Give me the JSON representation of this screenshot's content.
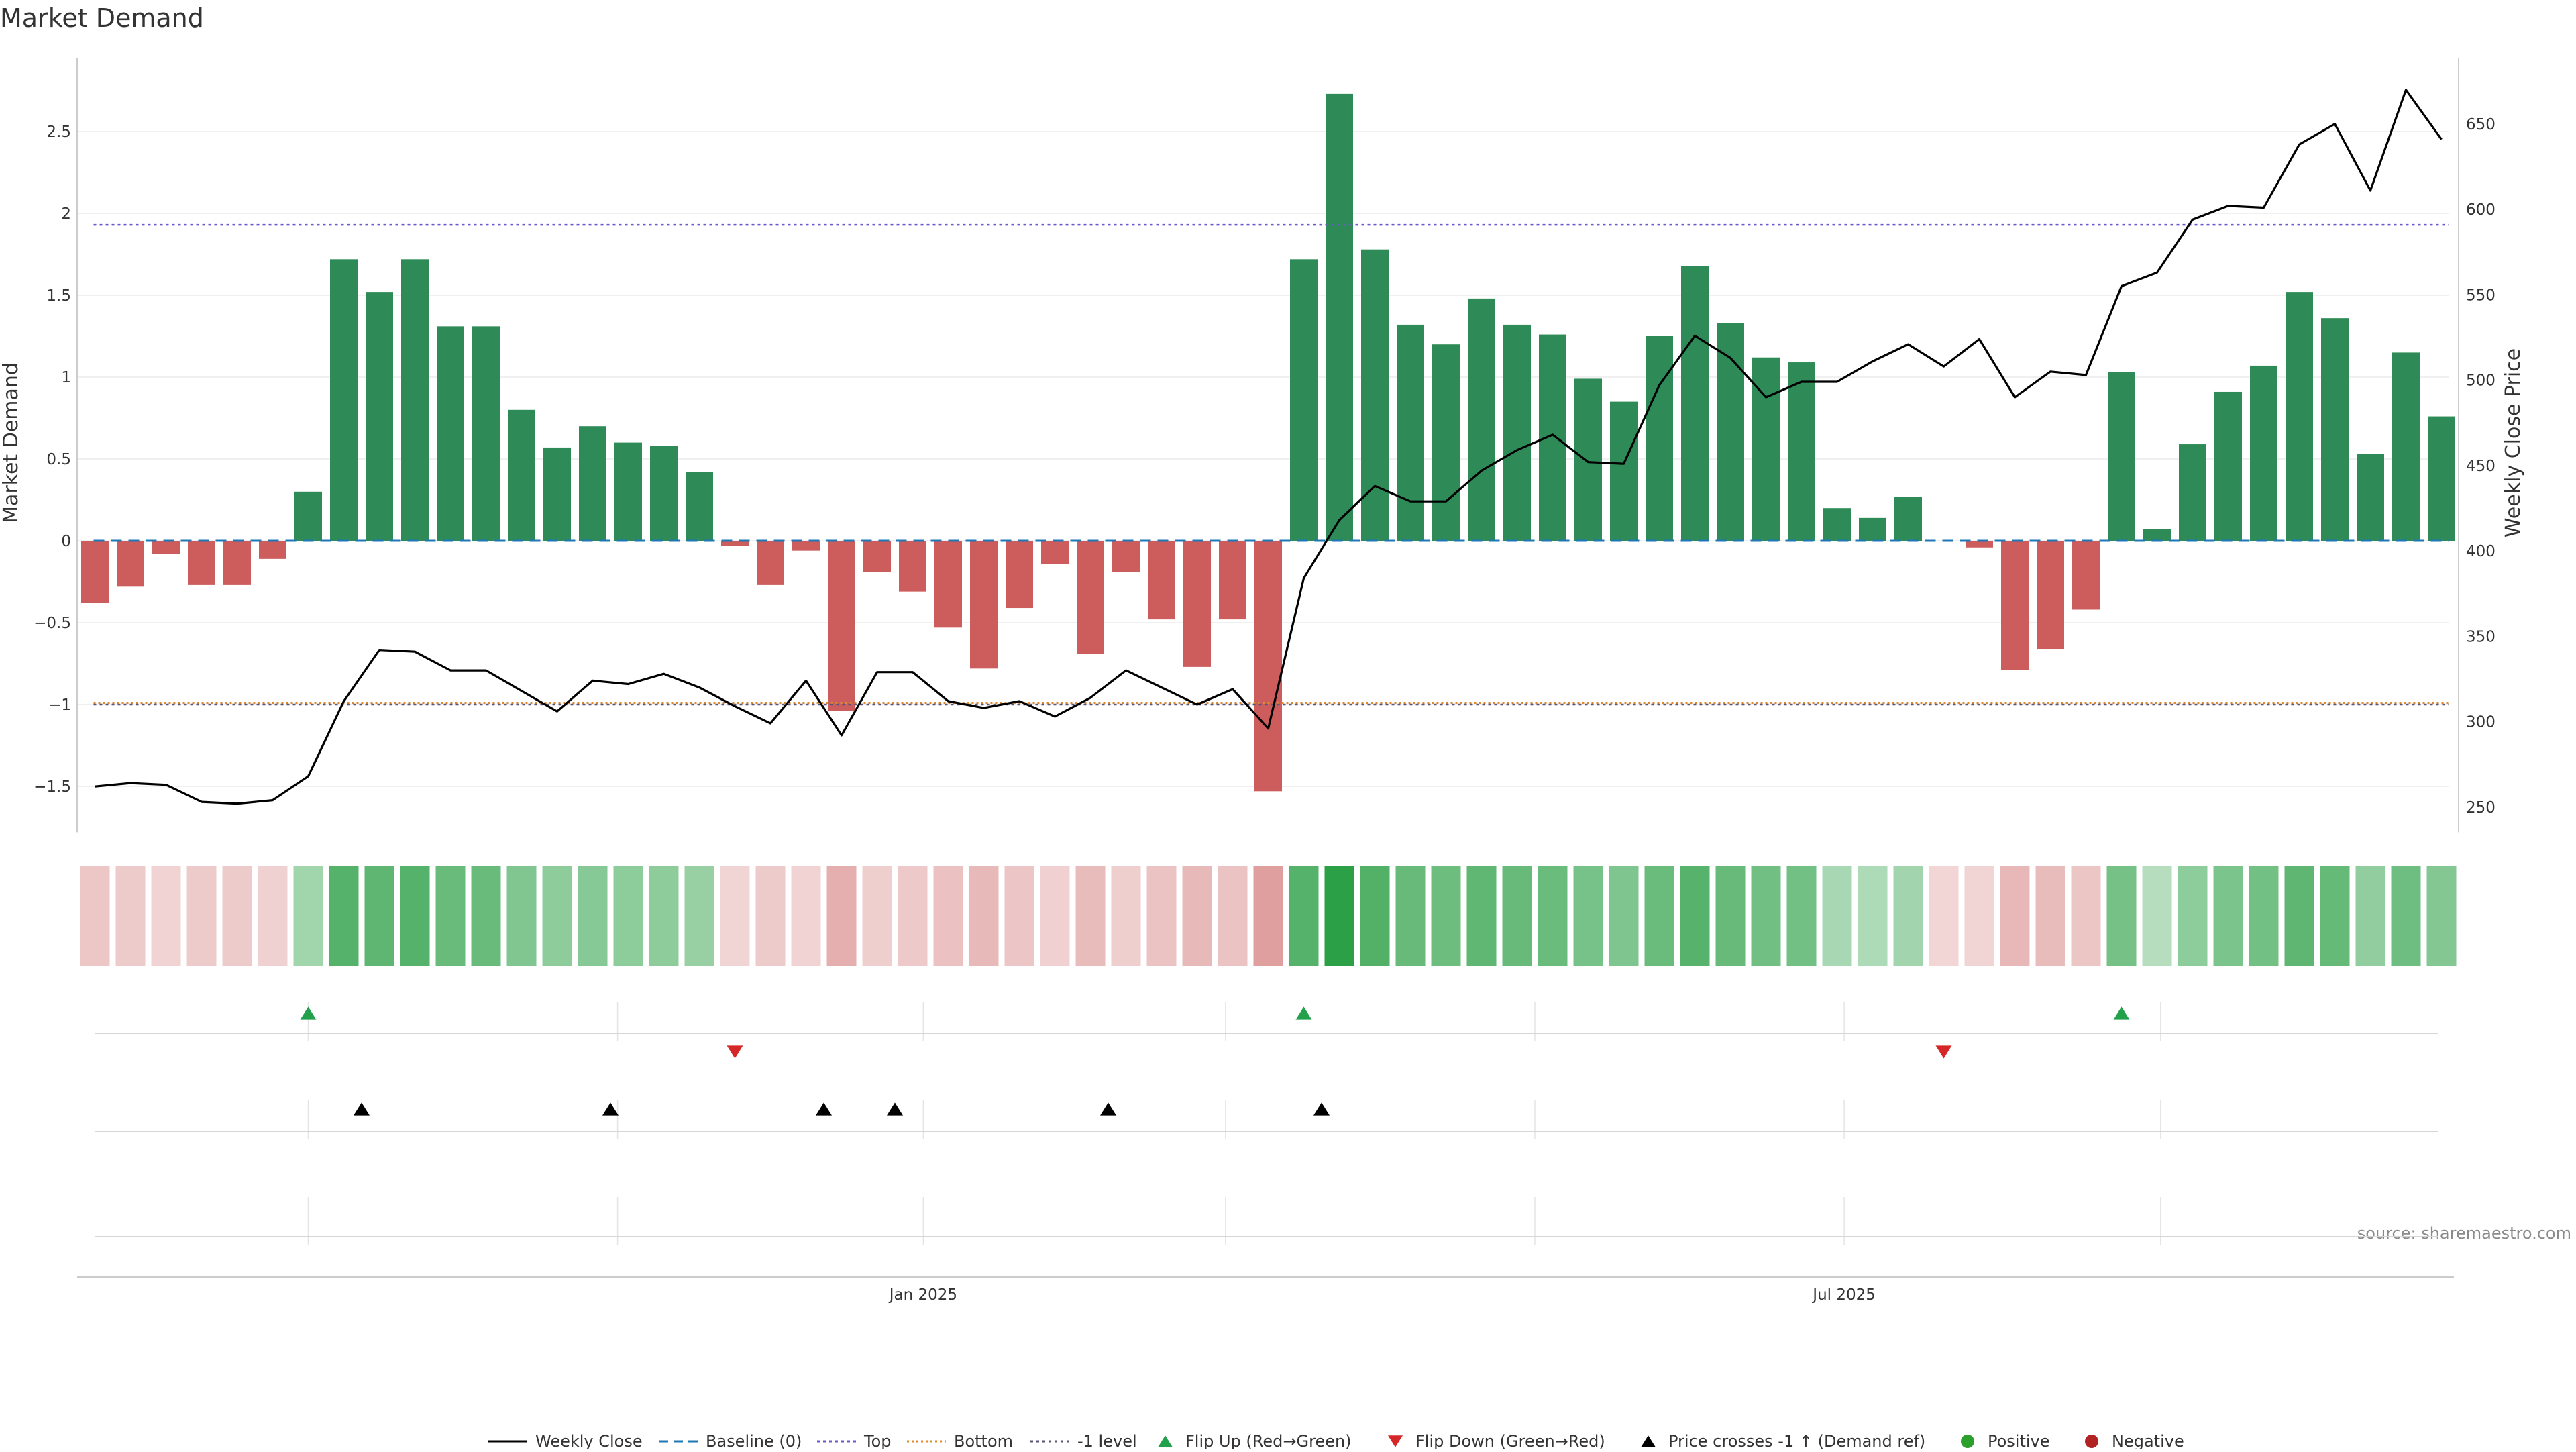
{
  "chart_data": {
    "type": "bar",
    "title": "Market Demand",
    "ylabel": "Market Demand",
    "y2label": "Weekly Close Price",
    "ylim": [
      -1.78,
      2.95
    ],
    "y2lim": [
      230,
      695
    ],
    "yticks": [
      -1.5,
      -1,
      -0.5,
      0,
      0.5,
      1,
      1.5,
      2,
      2.5
    ],
    "yticklabels": [
      "−1.5",
      "−1",
      "−0.5",
      "0",
      "0.5",
      "1",
      "1.5",
      "2",
      "2.5"
    ],
    "y2ticks": [
      250,
      300,
      350,
      400,
      450,
      500,
      550,
      600,
      650
    ],
    "top_level": 1.93,
    "bottom_level": -0.99,
    "minus1_level": -1,
    "baseline": 0,
    "weeks": 67,
    "xticks": [
      {
        "index": 23.3,
        "label": "Jan 2025"
      },
      {
        "index": 49.2,
        "label": "Jul 2025"
      }
    ],
    "demand": [
      -0.38,
      -0.28,
      -0.08,
      -0.27,
      -0.27,
      -0.11,
      0.3,
      1.72,
      1.52,
      1.72,
      1.31,
      1.31,
      0.8,
      0.57,
      0.7,
      0.6,
      0.58,
      0.42,
      -0.03,
      -0.27,
      -0.06,
      -1.04,
      -0.19,
      -0.31,
      -0.53,
      -0.78,
      -0.41,
      -0.14,
      -0.69,
      -0.19,
      -0.48,
      -0.77,
      -0.48,
      -1.53,
      1.72,
      2.73,
      1.78,
      1.32,
      1.2,
      1.48,
      1.32,
      1.26,
      0.99,
      0.85,
      1.25,
      1.68,
      1.33,
      1.12,
      1.09,
      0.2,
      0.14,
      0.27,
      0,
      -0.04,
      -0.79,
      -0.66,
      -0.42,
      1.03,
      0.07,
      0.59,
      0.91,
      1.07,
      1.52,
      1.36,
      0.53,
      1.15,
      0.76
    ],
    "weekly_close": [
      262,
      264,
      263,
      253,
      252,
      254,
      268,
      312,
      342,
      341,
      330,
      330,
      318,
      306,
      324,
      322,
      328,
      320,
      309,
      299,
      324,
      292,
      329,
      329,
      312,
      308,
      312,
      303,
      314,
      330,
      320,
      310,
      319,
      296,
      384,
      418,
      438,
      429,
      429,
      447,
      459,
      468,
      452,
      451,
      497,
      526,
      513,
      490,
      499,
      499,
      511,
      521,
      508,
      524,
      490,
      505,
      503,
      555,
      563,
      594,
      602,
      601,
      638,
      650,
      611,
      670,
      641
    ],
    "flip_up_weeks": [
      6,
      34,
      57
    ],
    "flip_down_weeks": [
      18,
      52
    ],
    "price_cross_weeks": [
      7,
      14,
      20,
      22,
      28,
      34
    ],
    "legend": [
      "Weekly Close",
      "Baseline (0)",
      "Top",
      "Bottom",
      "-1 level",
      "Flip Up (Red→Green)",
      "Flip Down (Green→Red)",
      "Price crosses -1 ↑ (Demand ref)",
      "Positive",
      "Negative"
    ],
    "source": "source: sharemaestro.com",
    "colors": {
      "positive": "#2e8b57",
      "negative": "#cd5c5c",
      "price": "#000000",
      "baseline": "#1f77b4",
      "top": "#6a5acd",
      "bottom": "#e08a2e",
      "minus1": "#555577",
      "flip_up": "#22a04b",
      "flip_down": "#d62728",
      "positive_dot": "#2ca02c",
      "negative_dot": "#b22222"
    }
  }
}
